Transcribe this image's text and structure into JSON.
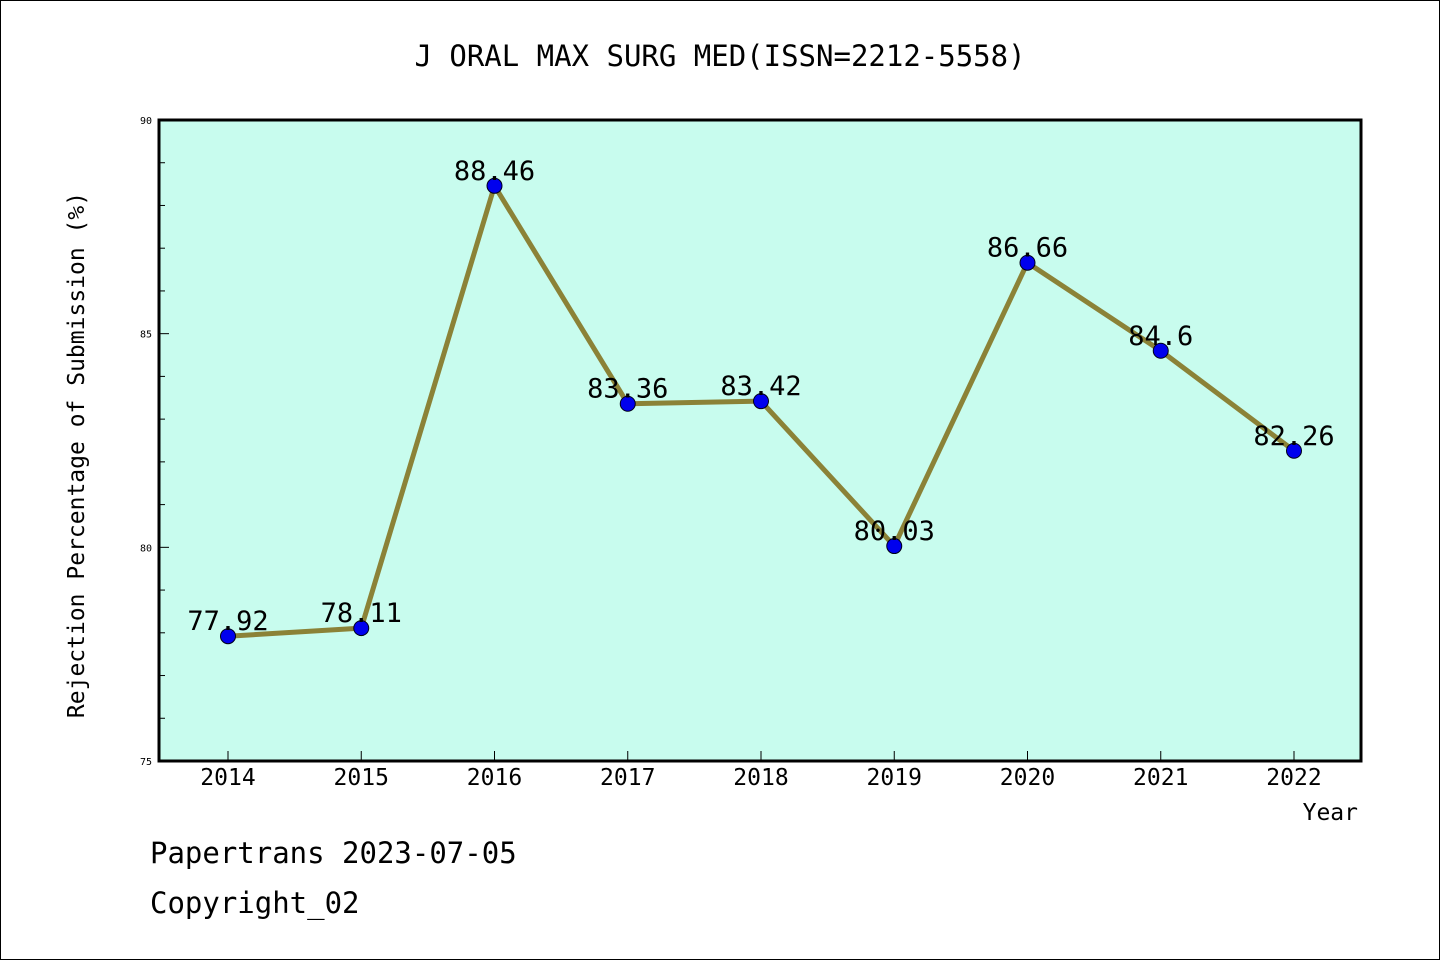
{
  "chart_data": {
    "type": "line",
    "title": "J ORAL MAX SURG MED(ISSN=2212-5558)",
    "xlabel": "Year",
    "ylabel": "Rejection Percentage of Submission (%)",
    "categories": [
      "2014",
      "2015",
      "2016",
      "2017",
      "2018",
      "2019",
      "2020",
      "2021",
      "2022"
    ],
    "series": [
      {
        "values": [
          77.92,
          78.11,
          88.46,
          83.36,
          83.42,
          80.03,
          86.66,
          84.6,
          82.26
        ],
        "labels": [
          "77.92",
          "78.11",
          "88.46",
          "83.36",
          "83.42",
          "80.03",
          "86.66",
          "84.6",
          "82.26"
        ]
      }
    ],
    "ylim": [
      75,
      90
    ],
    "yticks": [
      "75",
      "80",
      "85",
      "90"
    ],
    "grid": false,
    "legend": "none",
    "colors": {
      "plot_background": "#c8fcee",
      "line": "#8b8237",
      "marker": "#0000ee"
    }
  },
  "footer": {
    "line1": "Papertrans 2023-07-05",
    "line2": "Copyright_02"
  }
}
